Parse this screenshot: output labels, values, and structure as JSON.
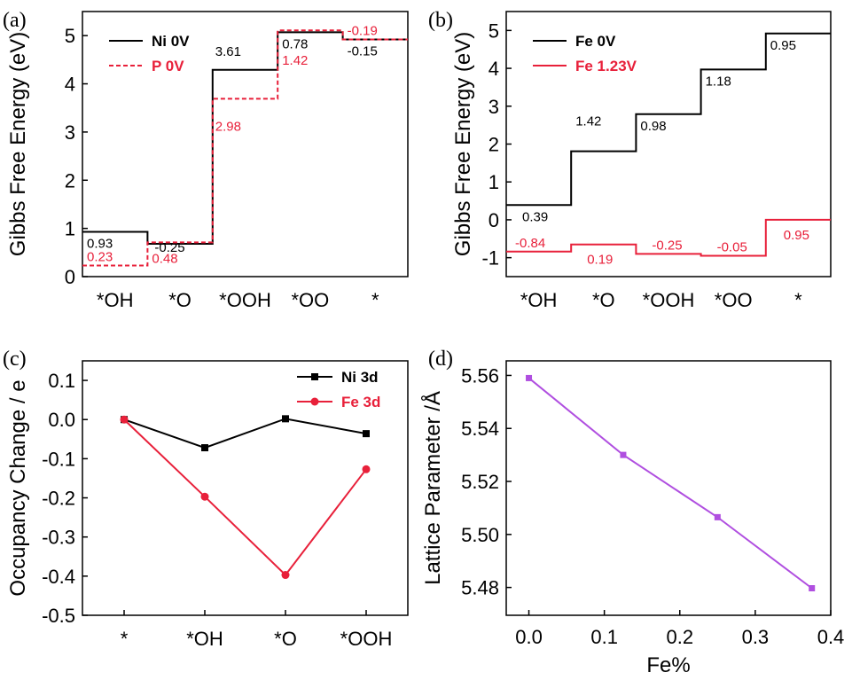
{
  "chart_data": [
    {
      "panel": "(a)",
      "type": "line",
      "subtype": "step",
      "ylabel": "Gibbs Free Energy (eV)",
      "ylim": [
        0,
        5.5
      ],
      "yticks": [
        "0",
        "1",
        "2",
        "3",
        "4",
        "5"
      ],
      "categories": [
        "*OH",
        "*O",
        "*OOH",
        "*OO",
        "*"
      ],
      "legend_position": "top-left",
      "series": [
        {
          "name": "Ni 0V",
          "color": "#000000",
          "dash": false,
          "values": [
            0.93,
            0.68,
            4.29,
            5.07,
            4.92
          ],
          "annotations": [
            "0.93",
            "-0.25",
            "3.61",
            "0.78",
            "-0.15"
          ]
        },
        {
          "name": "P  0V",
          "color": "#e8203a",
          "dash": true,
          "values": [
            0.23,
            0.71,
            3.69,
            5.11,
            4.92
          ],
          "annotations": [
            "0.23",
            "0.48",
            "2.98",
            "1.42",
            "-0.19"
          ]
        }
      ]
    },
    {
      "panel": "(b)",
      "type": "line",
      "subtype": "step",
      "ylabel": "Gibbs Free Energy (eV)",
      "ylim": [
        -1.5,
        5.5
      ],
      "yticks": [
        "-1",
        "0",
        "1",
        "2",
        "3",
        "4",
        "5"
      ],
      "categories": [
        "*OH",
        "*O",
        "*OOH",
        "*OO",
        "*"
      ],
      "legend_position": "top-left",
      "series": [
        {
          "name": "Fe 0V",
          "color": "#000000",
          "values": [
            0.39,
            1.81,
            2.79,
            3.97,
            4.92
          ],
          "annotations": [
            "0.39",
            "1.42",
            "0.98",
            "1.18",
            "0.95"
          ]
        },
        {
          "name": "Fe 1.23V",
          "color": "#e8203a",
          "values": [
            -0.84,
            -0.65,
            -0.9,
            -0.95,
            0.0
          ],
          "annotations": [
            "-0.84",
            "0.19",
            "-0.25",
            "-0.05",
            "0.95"
          ]
        }
      ]
    },
    {
      "panel": "(c)",
      "type": "line",
      "ylabel": "Occupancy Change / e",
      "ylim": [
        -0.5,
        0.15
      ],
      "yticks": [
        "0.1",
        "0.0",
        "-0.1",
        "-0.2",
        "-0.3",
        "-0.4",
        "-0.5"
      ],
      "categories": [
        "*",
        "*OH",
        "*O",
        "*OOH"
      ],
      "legend_position": "top-right",
      "series": [
        {
          "name": "Ni 3d",
          "color": "#000000",
          "marker": "square",
          "values": [
            0.0,
            -0.072,
            0.002,
            -0.036
          ]
        },
        {
          "name": "Fe 3d",
          "color": "#e8203a",
          "marker": "circle",
          "values": [
            0.0,
            -0.197,
            -0.397,
            -0.127
          ]
        }
      ]
    },
    {
      "panel": "(d)",
      "type": "line",
      "xlabel": "Fe%",
      "ylabel": "Lattice Parameter /Å",
      "xlim": [
        -0.03,
        0.4
      ],
      "ylim": [
        5.4695,
        5.5655
      ],
      "xticks": [
        "0.0",
        "0.1",
        "0.2",
        "0.3",
        "0.4"
      ],
      "yticks": [
        "5.56",
        "5.54",
        "5.52",
        "5.50",
        "5.48"
      ],
      "series": [
        {
          "name": "Lattice parameter",
          "color": "#b04fe0",
          "marker": "square",
          "x": [
            0.0,
            0.125,
            0.25,
            0.375
          ],
          "y": [
            5.559,
            5.53,
            5.5065,
            5.4797
          ]
        }
      ]
    }
  ]
}
